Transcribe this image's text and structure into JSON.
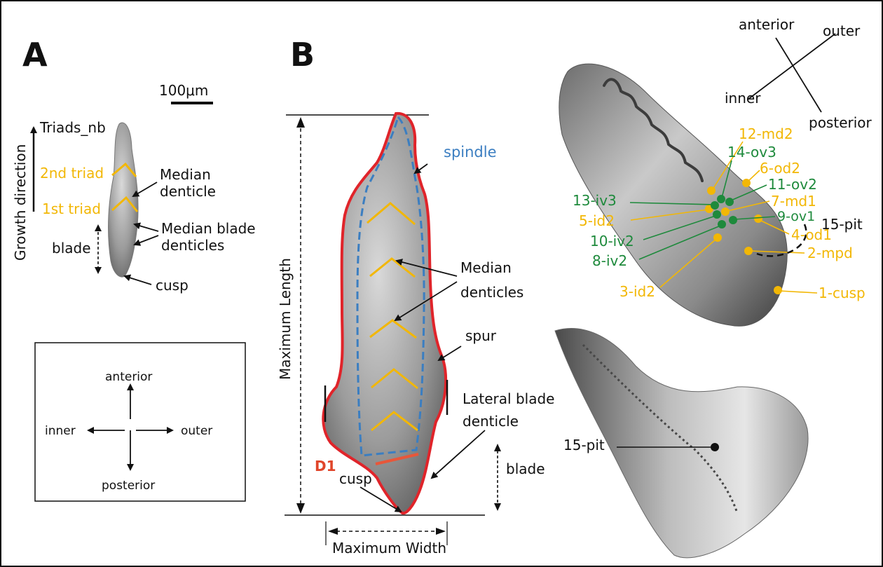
{
  "colors": {
    "yellow": "#f2b705",
    "green": "#1e8a3c",
    "blue": "#3b7ec1",
    "red_outline": "#e0242a",
    "d1_line": "#e8573a"
  },
  "panel_a": {
    "letter": "A",
    "scale_bar": "100μm",
    "triads_nb": "Triads_nb",
    "growth_direction": "Growth direction",
    "second_triad": "2nd triad",
    "first_triad": "1st triad",
    "median_denticle_line1": "Median",
    "median_denticle_line2": "denticle",
    "median_blade_line1": "Median blade",
    "median_blade_line2": "denticles",
    "blade": "blade",
    "cusp": "cusp"
  },
  "orientation_box": {
    "anterior": "anterior",
    "posterior": "posterior",
    "inner": "inner",
    "outer": "outer"
  },
  "panel_b": {
    "letter": "B",
    "spindle": "spindle",
    "maximum_length": "Maximum Length",
    "maximum_width": "Maximum Width",
    "median_denticles_line1": "Median",
    "median_denticles_line2": "denticles",
    "spur": "spur",
    "lateral_blade_line1": "Lateral blade",
    "lateral_blade_line2": "denticle",
    "d1": "D1",
    "cusp": "cusp",
    "blade": "blade"
  },
  "panel_c": {
    "orientation": {
      "anterior": "anterior",
      "outer": "outer",
      "inner": "inner",
      "posterior": "posterior"
    },
    "landmarks": [
      {
        "label": "12-md2",
        "color": "yellow"
      },
      {
        "label": "14-ov3",
        "color": "green"
      },
      {
        "label": "6-od2",
        "color": "yellow"
      },
      {
        "label": "11-ov2",
        "color": "green"
      },
      {
        "label": "7-md1",
        "color": "yellow"
      },
      {
        "label": "13-iv3",
        "color": "green"
      },
      {
        "label": "9-ov1",
        "color": "green"
      },
      {
        "label": "15-pit",
        "color": "black"
      },
      {
        "label": "5-id2",
        "color": "yellow"
      },
      {
        "label": "4-od1",
        "color": "yellow"
      },
      {
        "label": "10-iv2",
        "color": "green"
      },
      {
        "label": "2-mpd",
        "color": "yellow"
      },
      {
        "label": "8-iv2",
        "color": "green"
      },
      {
        "label": "3-id2",
        "color": "yellow"
      },
      {
        "label": "1-cusp",
        "color": "yellow"
      }
    ],
    "pit_lower": "15-pit"
  }
}
